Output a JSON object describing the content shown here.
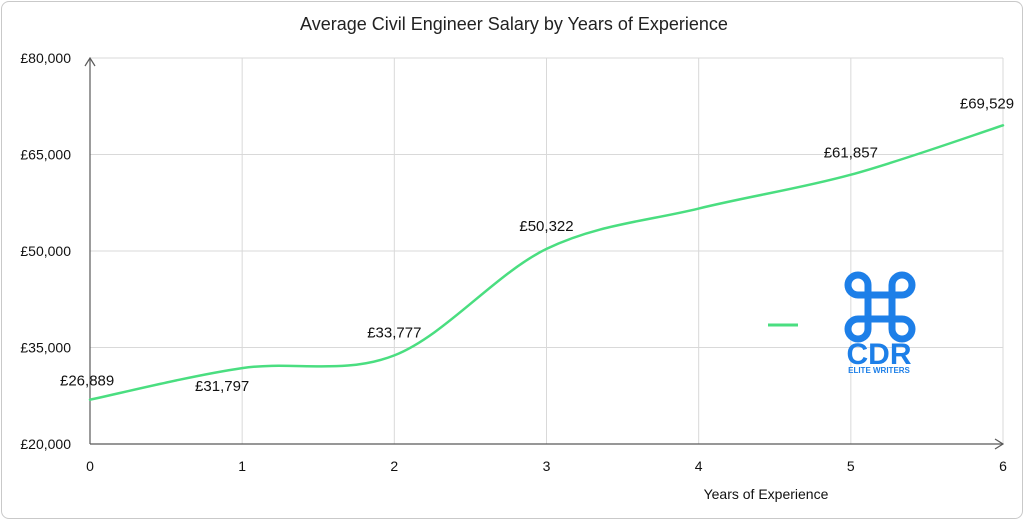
{
  "chart_data": {
    "type": "line",
    "title": "Average Civil Engineer Salary by Years of Experience",
    "xlabel": "Years of Experience",
    "ylabel": "",
    "x": [
      0,
      1,
      2,
      3,
      4,
      5,
      6
    ],
    "xlim": [
      0,
      6
    ],
    "ylim": [
      20000,
      80000
    ],
    "y_ticks": [
      20000,
      35000,
      50000,
      65000,
      80000
    ],
    "y_tick_labels": [
      "£20,000",
      "£35,000",
      "£50,000",
      "£65,000",
      "£80,000"
    ],
    "x_tick_labels": [
      "0",
      "1",
      "2",
      "3",
      "4",
      "5",
      "6"
    ],
    "series": [
      {
        "values": [
          26889,
          31797,
          33777,
          50322,
          56600,
          61857,
          69529
        ],
        "labels": [
          "£26,889",
          "£31,797",
          "£33,777",
          "£50,322",
          "",
          "£61,857",
          "£69,529"
        ],
        "smooth": true
      }
    ],
    "grid": true,
    "legend": "right",
    "colors": {
      "line": "#4ade80",
      "grid": "#d9d9d9",
      "axis": "#595959",
      "logo": "#1d7fe8"
    }
  },
  "logo": {
    "brand": "CDR",
    "tagline": "ELITE WRITERS",
    "icon": "command-key-icon"
  }
}
